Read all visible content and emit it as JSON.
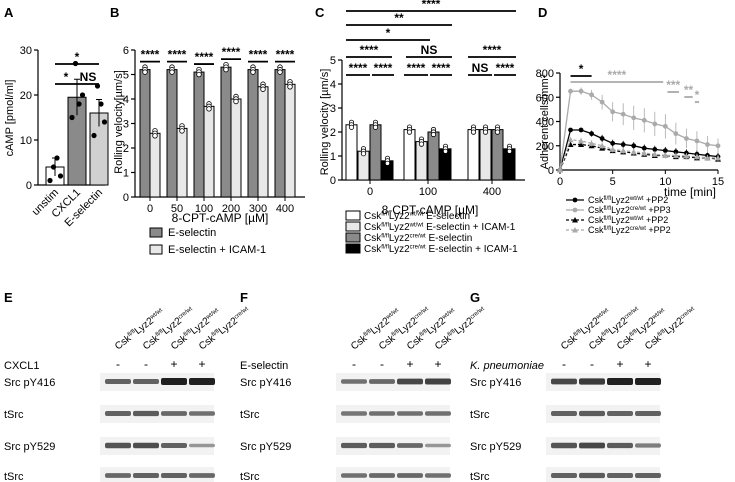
{
  "panels": {
    "A": {
      "letter": "A",
      "ylabel": "cAMP [pmol/ml]",
      "yticks": [
        "0",
        "10",
        "20",
        "30"
      ],
      "categories": [
        "unstim",
        "CXCL1",
        "E-selectin"
      ],
      "values": [
        4,
        19.5,
        16
      ],
      "errors": [
        2,
        4,
        3
      ],
      "points": [
        [
          1,
          4,
          6,
          2
        ],
        [
          15,
          27,
          18,
          20
        ],
        [
          11,
          22,
          18,
          14
        ]
      ],
      "sig": [
        "*",
        "*",
        "NS"
      ]
    },
    "B": {
      "letter": "B",
      "ylabel": "Rolling velocity[µm/s]",
      "xlabel": "8-CPT-cAMP [µM]",
      "yticks": [
        "0",
        "1",
        "2",
        "3",
        "4",
        "5",
        "6"
      ],
      "categories": [
        "0",
        "50",
        "100",
        "200",
        "300",
        "400"
      ],
      "sig": [
        "****",
        "****",
        "****",
        "****",
        "****",
        "****"
      ],
      "legend": [
        "E-selectin",
        "E-selectin + ICAM-1"
      ]
    },
    "C": {
      "letter": "C",
      "ylabel": "Rolling velocity [µm/s]",
      "xlabel": "8-CPT-cAMP [µM]",
      "yticks": [
        "0",
        "1",
        "2",
        "3",
        "4",
        "5"
      ],
      "categories": [
        "0",
        "100",
        "400"
      ],
      "sig_top": [
        "*",
        "**",
        "****"
      ],
      "sig_pair": [
        "NS",
        "NS"
      ],
      "sig_inner": [
        "****",
        "****",
        "****",
        "****",
        "****",
        "****"
      ],
      "legend": [
        {
          "base": "Csk",
          "sup": "fl/fl",
          "mid": "Lyz2",
          "sup2": "wt/wt",
          "tail": " E-selectin"
        },
        {
          "base": "Csk",
          "sup": "fl/fl",
          "mid": "Lyz2",
          "sup2": "wt/wt",
          "tail": " E-selectin + ICAM-1"
        },
        {
          "base": "Csk",
          "sup": "fl/fl",
          "mid": "Lyz2",
          "sup2": "cre/wt",
          "tail": " E-selectin"
        },
        {
          "base": "Csk",
          "sup": "fl/fl",
          "mid": "Lyz2",
          "sup2": "cre/wt",
          "tail": " E-selectin + ICAM-1"
        }
      ]
    },
    "D": {
      "letter": "D",
      "ylabel": "Adherent cells/mm²",
      "xlabel": "time [min]",
      "yticks": [
        "0",
        "200",
        "400",
        "600",
        "800"
      ],
      "xticks": [
        "0",
        "5",
        "10",
        "15"
      ],
      "sig": [
        "*",
        "****",
        "***",
        "**",
        "*"
      ],
      "legend": [
        {
          "base": "Csk",
          "sup": "fl/fl",
          "mid": "Lyz2",
          "sup2": "wt/wt",
          "tail": " +PP2"
        },
        {
          "base": "Csk",
          "sup": "fl/fl",
          "mid": "Lyz2",
          "sup2": "cre/wt",
          "tail": " +PP3"
        },
        {
          "base": "Csk",
          "sup": "fl/fl",
          "mid": "Lyz2",
          "sup2": "wt/wt",
          "tail": " +PP2"
        },
        {
          "base": "Csk",
          "sup": "fl/fl",
          "mid": "Lyz2",
          "sup2": "cre/wt",
          "tail": " +PP2"
        }
      ]
    },
    "E": {
      "letter": "E",
      "stim": "CXCL1",
      "signs": [
        "-",
        "-",
        "+",
        "+"
      ]
    },
    "F": {
      "letter": "F",
      "stim": "E-selectin",
      "signs": [
        "-",
        "-",
        "+",
        "+"
      ]
    },
    "G": {
      "letter": "G",
      "stim": "K. pneumoniae",
      "signs": [
        "-",
        "-",
        "+",
        "+"
      ]
    }
  },
  "blot_lanes": [
    {
      "base": "Csk",
      "sup": "fl/fl",
      "mid": "Lyz2",
      "sup2": "wt/wt"
    },
    {
      "base": "Csk",
      "sup": "fl/fl",
      "mid": "Lyz2",
      "sup2": "cre/wt"
    },
    {
      "base": "Csk",
      "sup": "fl/fl",
      "mid": "Lyz2",
      "sup2": "wt/wt"
    },
    {
      "base": "Csk",
      "sup": "fl/fl",
      "mid": "Lyz2",
      "sup2": "cre/wt"
    }
  ],
  "blot_rows": [
    "Src pY416",
    "tSrc",
    "Src pY529",
    "tSrc"
  ],
  "chart_data": [
    {
      "type": "bar",
      "panel": "A",
      "categories": [
        "unstim",
        "CXCL1",
        "E-selectin"
      ],
      "values": [
        4,
        19.5,
        16
      ],
      "ylabel": "cAMP [pmol/ml]",
      "ylim": [
        0,
        30
      ]
    },
    {
      "type": "bar",
      "panel": "B",
      "categories": [
        "0",
        "50",
        "100",
        "200",
        "300",
        "400"
      ],
      "series": [
        {
          "name": "E-selectin",
          "values": [
            5.2,
            5.2,
            5.1,
            5.3,
            5.2,
            5.2
          ]
        },
        {
          "name": "E-selectin + ICAM-1",
          "values": [
            2.6,
            2.8,
            3.7,
            4.0,
            4.5,
            4.6
          ]
        }
      ],
      "xlabel": "8-CPT-cAMP [µM]",
      "ylabel": "Rolling velocity[µm/s]",
      "ylim": [
        0,
        6
      ]
    },
    {
      "type": "bar",
      "panel": "C",
      "categories": [
        "0",
        "100",
        "400"
      ],
      "series": [
        {
          "name": "wt E-selectin",
          "values": [
            2.3,
            2.1,
            2.1
          ]
        },
        {
          "name": "wt E-selectin + ICAM-1",
          "values": [
            1.2,
            1.6,
            2.1
          ]
        },
        {
          "name": "cre E-selectin",
          "values": [
            2.3,
            2.0,
            2.1
          ]
        },
        {
          "name": "cre E-selectin + ICAM-1",
          "values": [
            0.8,
            1.3,
            1.3
          ]
        }
      ],
      "xlabel": "8-CPT-cAMP [µM]",
      "ylabel": "Rolling velocity [µm/s]",
      "ylim": [
        0,
        5
      ]
    },
    {
      "type": "line",
      "panel": "D",
      "x": [
        0,
        1,
        2,
        3,
        4,
        5,
        6,
        7,
        8,
        9,
        10,
        11,
        12,
        13,
        14,
        15
      ],
      "series": [
        {
          "name": "wt +PP2",
          "values": [
            0,
            330,
            330,
            300,
            260,
            220,
            210,
            200,
            180,
            170,
            160,
            150,
            140,
            130,
            120,
            110
          ],
          "err": [
            0,
            15,
            20,
            25,
            30,
            30,
            30,
            30,
            30,
            30,
            30,
            30,
            30,
            30,
            30,
            30
          ]
        },
        {
          "name": "cre +PP3",
          "values": [
            0,
            650,
            650,
            620,
            560,
            480,
            460,
            430,
            410,
            380,
            360,
            300,
            260,
            240,
            210,
            200
          ],
          "err": [
            0,
            20,
            30,
            40,
            60,
            80,
            90,
            100,
            100,
            100,
            100,
            90,
            80,
            80,
            70,
            60
          ]
        },
        {
          "name": "wt +PP2 (dashed)",
          "values": [
            0,
            210,
            210,
            200,
            180,
            160,
            150,
            140,
            130,
            120,
            120,
            110,
            110,
            100,
            100,
            90
          ],
          "err": [
            0,
            15,
            20,
            20,
            20,
            20,
            20,
            20,
            20,
            20,
            20,
            20,
            20,
            20,
            20,
            20
          ]
        },
        {
          "name": "cre +PP2",
          "values": [
            0,
            250,
            240,
            220,
            200,
            170,
            160,
            150,
            140,
            130,
            120,
            120,
            115,
            110,
            100,
            100
          ],
          "err": [
            0,
            20,
            25,
            25,
            25,
            25,
            25,
            25,
            25,
            25,
            25,
            25,
            25,
            25,
            25,
            25
          ]
        }
      ],
      "xlabel": "time [min]",
      "ylabel": "Adherent cells/mm²",
      "ylim": [
        0,
        800
      ],
      "xlim": [
        0,
        15
      ]
    }
  ]
}
